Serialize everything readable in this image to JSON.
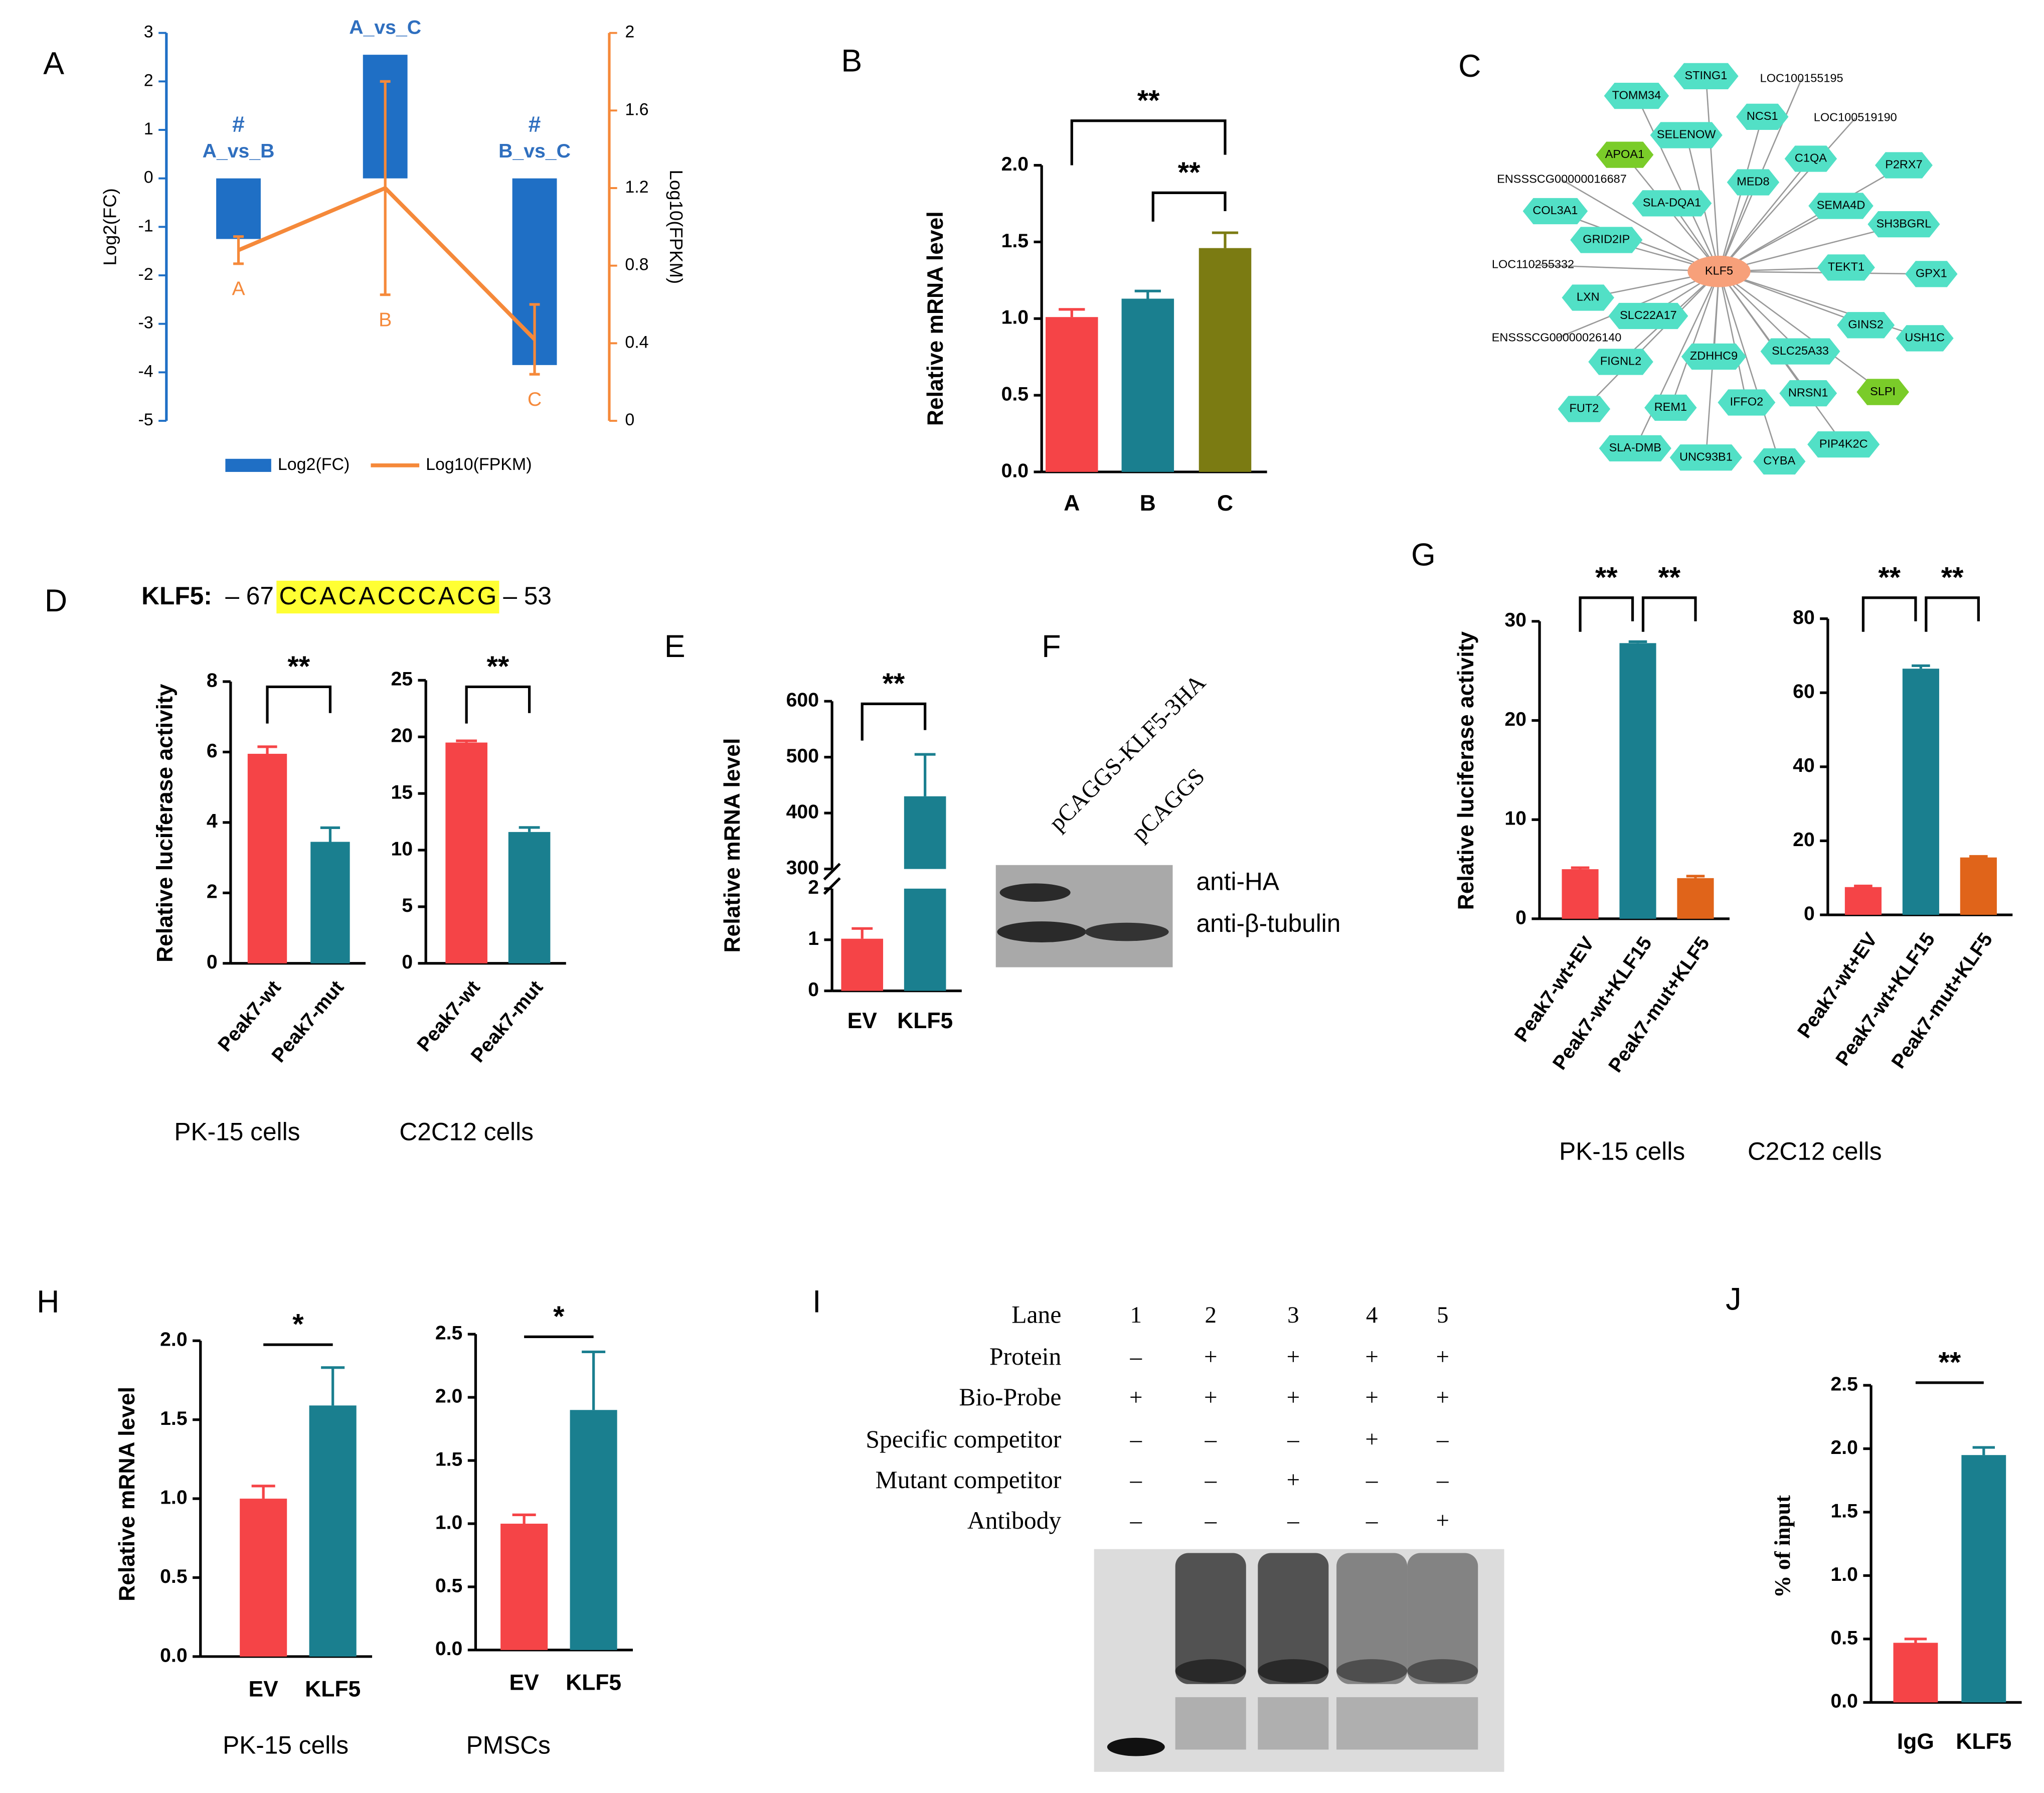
{
  "panel_labels": [
    "A",
    "B",
    "C",
    "D",
    "E",
    "F",
    "G",
    "H",
    "I",
    "J"
  ],
  "chart_data": [
    {
      "type": "combo",
      "ylabel": "Log2(FC)",
      "y2label": "Log10(FPKM)",
      "categories": [
        "A_vs_B",
        "A_vs_C",
        "B_vs_C"
      ],
      "annotations": [
        "#",
        "#"
      ],
      "series": [
        {
          "name": "Log2(FC)",
          "color": "#1f6fc5",
          "values": [
            -1.25,
            2.55,
            -3.85
          ]
        },
        {
          "name": "Log10(FPKM)",
          "color": "#f5893a",
          "axis": "y2",
          "values": [
            0.88,
            1.2,
            0.42
          ],
          "errors": [
            0.07,
            0.55,
            0.18
          ],
          "point_labels": [
            "A",
            "B",
            "C"
          ]
        }
      ],
      "ylim": [
        -5,
        3
      ],
      "yticks": [
        -5,
        -4,
        -3,
        -2,
        -1,
        0,
        1,
        2,
        3
      ],
      "y2lim": [
        0,
        2
      ],
      "y2ticks": [
        0,
        0.4,
        0.8,
        1.2,
        1.6,
        2
      ]
    },
    {
      "type": "bar",
      "ylabel": "Relative mRNA level",
      "categories": [
        "A",
        "B",
        "C"
      ],
      "values": [
        1.01,
        1.13,
        1.46
      ],
      "errors": [
        0.05,
        0.05,
        0.1
      ],
      "colors": [
        "#f54447",
        "#1a7f8f",
        "#7b7b12"
      ],
      "ylim": [
        0,
        2
      ],
      "yticks": [
        {
          "value": 0,
          "label": "0.0"
        },
        0.5,
        {
          "value": 1,
          "label": "1.0"
        },
        1.5,
        {
          "value": 2,
          "label": "2.0"
        }
      ],
      "significance": [
        "**",
        "**"
      ]
    },
    {
      "type": "bar",
      "ylabel": "Relative luciferase activity",
      "xlabel": "PK-15 cells",
      "categories": [
        "Peak7-wt",
        "Peak7-mut"
      ],
      "values": [
        5.95,
        3.45
      ],
      "errors": [
        0.2,
        0.4
      ],
      "colors": [
        "#f54447",
        "#1a7f8f"
      ],
      "ylim": [
        0,
        8
      ],
      "yticks": [
        0,
        2,
        4,
        6,
        8
      ],
      "significance": [
        "**"
      ]
    },
    {
      "type": "bar",
      "xlabel": "C2C12 cells",
      "categories": [
        "Peak7-wt",
        "Peak7-mut"
      ],
      "values": [
        19.5,
        11.6
      ],
      "errors": [
        0.15,
        0.4
      ],
      "colors": [
        "#f54447",
        "#1a7f8f"
      ],
      "ylim": [
        0,
        25
      ],
      "yticks": [
        0,
        5,
        10,
        15,
        20,
        25
      ],
      "significance": [
        "**"
      ]
    },
    {
      "type": "bar",
      "ylabel": "Relative mRNA level",
      "categories": [
        "EV",
        "KLF5"
      ],
      "values": [
        1.02,
        430
      ],
      "errors": [
        0.2,
        75
      ],
      "colors": [
        "#f54447",
        "#1a7f8f"
      ],
      "ylim": [
        0,
        600
      ],
      "ybreak": [
        2,
        300
      ],
      "yticks": [
        0,
        1,
        2,
        300,
        400,
        500,
        600
      ],
      "significance": [
        "**"
      ]
    },
    {
      "type": "bar",
      "ylabel": "Relative luciferase activity",
      "xlabel": "PK-15 cells",
      "categories": [
        "Peak7-wt+EV",
        "Peak7-wt+KLF15",
        "Peak7-mut+KLF5"
      ],
      "values": [
        5.0,
        27.8,
        4.1
      ],
      "errors": [
        0.15,
        0.15,
        0.2
      ],
      "colors": [
        "#f54447",
        "#1a7f8f",
        "#e0641a"
      ],
      "ylim": [
        0,
        30
      ],
      "yticks": [
        0,
        10,
        20,
        30
      ],
      "significance": [
        "**",
        "**"
      ]
    },
    {
      "type": "bar",
      "xlabel": "C2C12 cells",
      "categories": [
        "Peak7-wt+EV",
        "Peak7-wt+KLF15",
        "Peak7-mut+KLF5"
      ],
      "values": [
        7.5,
        66.5,
        15.5
      ],
      "errors": [
        0.3,
        0.8,
        0.3
      ],
      "colors": [
        "#f54447",
        "#1a7f8f",
        "#e0641a"
      ],
      "ylim": [
        0,
        80
      ],
      "yticks": [
        0,
        20,
        40,
        60,
        80
      ],
      "significance": [
        "**",
        "**"
      ]
    },
    {
      "type": "bar",
      "ylabel": "Relative mRNA level",
      "xlabel": "PK-15 cells",
      "categories": [
        "EV",
        "KLF5"
      ],
      "values": [
        1.0,
        1.59
      ],
      "errors": [
        0.08,
        0.24
      ],
      "colors": [
        "#f54447",
        "#1a7f8f"
      ],
      "ylim": [
        0,
        2
      ],
      "yticks": [
        {
          "value": 0,
          "label": "0.0"
        },
        0.5,
        {
          "value": 1,
          "label": "1.0"
        },
        1.5,
        {
          "value": 2,
          "label": "2.0"
        }
      ],
      "significance": [
        "*"
      ]
    },
    {
      "type": "bar",
      "xlabel": "PMSCs",
      "categories": [
        "EV",
        "KLF5"
      ],
      "values": [
        1.0,
        1.9
      ],
      "errors": [
        0.07,
        0.46
      ],
      "colors": [
        "#f54447",
        "#1a7f8f"
      ],
      "ylim": [
        0,
        2.5
      ],
      "yticks": [
        {
          "value": 0,
          "label": "0.0"
        },
        0.5,
        {
          "value": 1,
          "label": "1.0"
        },
        1.5,
        {
          "value": 2,
          "label": "2.0"
        },
        2.5
      ],
      "significance": [
        "*"
      ]
    },
    {
      "type": "bar",
      "ylabel": "% of input",
      "categories": [
        "IgG",
        "KLF5"
      ],
      "values": [
        0.47,
        1.95
      ],
      "errors": [
        0.03,
        0.06
      ],
      "colors": [
        "#f54447",
        "#1a7f8f"
      ],
      "ylim": [
        0,
        2.5
      ],
      "yticks": [
        {
          "value": 0,
          "label": "0.0"
        },
        0.5,
        {
          "value": 1,
          "label": "1.0"
        },
        1.5,
        {
          "value": 2,
          "label": "2.0"
        },
        2.5
      ],
      "significance": [
        "**"
      ]
    }
  ],
  "network": {
    "center": {
      "label": "KLF5",
      "color": "#f7a07a"
    },
    "nodes": [
      {
        "label": "TOMM34",
        "color": "#52e0c6"
      },
      {
        "label": "STING1",
        "color": "#52e0c6"
      },
      {
        "label": "LOC100155195",
        "color": "#52e0c6"
      },
      {
        "label": "NCS1",
        "color": "#52e0c6"
      },
      {
        "label": "LOC100519190",
        "color": "#52e0c6"
      },
      {
        "label": "SELENOW",
        "color": "#52e0c6"
      },
      {
        "label": "APOA1",
        "color": "#7acc29"
      },
      {
        "label": "C1QA",
        "color": "#52e0c6"
      },
      {
        "label": "P2RX7",
        "color": "#52e0c6"
      },
      {
        "label": "ENSSSCG00000016687",
        "color": "#52e0c6"
      },
      {
        "label": "MED8",
        "color": "#52e0c6"
      },
      {
        "label": "SLA-DQA1",
        "color": "#52e0c6"
      },
      {
        "label": "COL3A1",
        "color": "#52e0c6"
      },
      {
        "label": "SEMA4D",
        "color": "#52e0c6"
      },
      {
        "label": "SH3BGRL",
        "color": "#52e0c6"
      },
      {
        "label": "GRID2IP",
        "color": "#52e0c6"
      },
      {
        "label": "LOC110255332",
        "color": "#52e0c6"
      },
      {
        "label": "TEKT1",
        "color": "#52e0c6"
      },
      {
        "label": "GPX1",
        "color": "#52e0c6"
      },
      {
        "label": "LXN",
        "color": "#52e0c6"
      },
      {
        "label": "SLC22A17",
        "color": "#52e0c6"
      },
      {
        "label": "GINS2",
        "color": "#52e0c6"
      },
      {
        "label": "USH1C",
        "color": "#52e0c6"
      },
      {
        "label": "ENSSSCG00000026140",
        "color": "#52e0c6"
      },
      {
        "label": "ZDHHC9",
        "color": "#52e0c6"
      },
      {
        "label": "SLC25A33",
        "color": "#52e0c6"
      },
      {
        "label": "FIGNL2",
        "color": "#52e0c6"
      },
      {
        "label": "SLPI",
        "color": "#7acc29"
      },
      {
        "label": "NRSN1",
        "color": "#52e0c6"
      },
      {
        "label": "IFFO2",
        "color": "#52e0c6"
      },
      {
        "label": "REM1",
        "color": "#52e0c6"
      },
      {
        "label": "FUT2",
        "color": "#52e0c6"
      },
      {
        "label": "PIP4K2C",
        "color": "#52e0c6"
      },
      {
        "label": "SLA-DMB",
        "color": "#52e0c6"
      },
      {
        "label": "UNC93B1",
        "color": "#52e0c6"
      },
      {
        "label": "CYBA",
        "color": "#52e0c6"
      }
    ]
  },
  "sequence": {
    "gene": "KLF5:",
    "start": "– 67",
    "motif": "CCACACCCACG",
    "end": "– 53"
  },
  "blot": {
    "lanes": [
      "pCAGGS-KLF5-3HA",
      "pCAGGS"
    ],
    "bands": [
      "anti-HA",
      "anti-β-tubulin"
    ]
  },
  "emsa": {
    "rows": [
      {
        "label": "Lane",
        "cells": [
          "1",
          "2",
          "3",
          "4",
          "5"
        ]
      },
      {
        "label": "Protein",
        "cells": [
          "–",
          "+",
          "+",
          "+",
          "+"
        ]
      },
      {
        "label": "Bio-Probe",
        "cells": [
          "+",
          "+",
          "+",
          "+",
          "+"
        ]
      },
      {
        "label": "Specific competitor",
        "cells": [
          "–",
          "–",
          "–",
          "+",
          "–"
        ]
      },
      {
        "label": "Mutant competitor",
        "cells": [
          "–",
          "–",
          "+",
          "–",
          "–"
        ]
      },
      {
        "label": "Antibody",
        "cells": [
          "–",
          "–",
          "–",
          "–",
          "+"
        ]
      }
    ]
  }
}
